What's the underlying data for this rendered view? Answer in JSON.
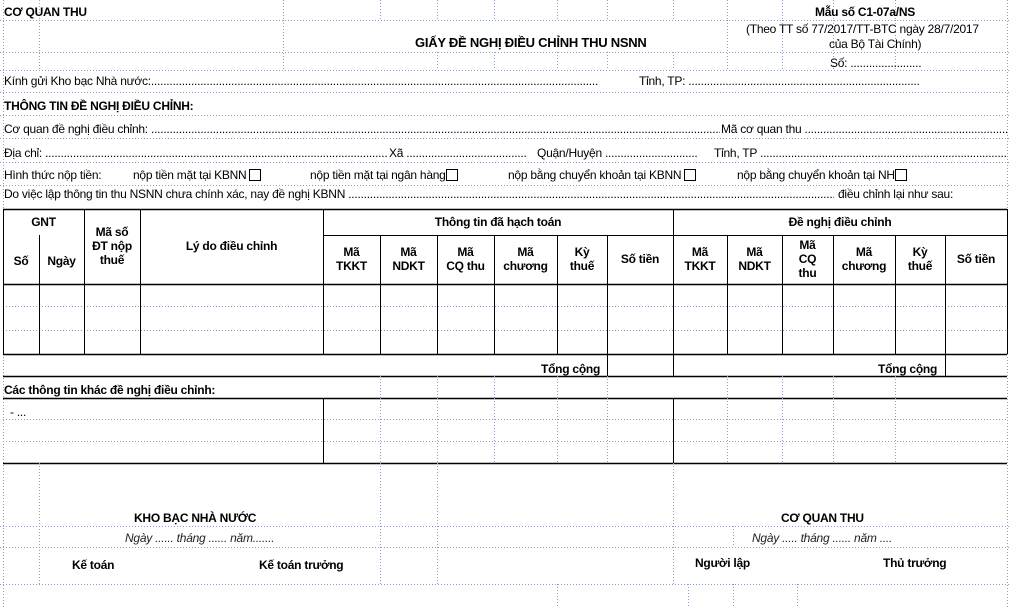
{
  "header": {
    "agency": "CƠ QUAN THU",
    "form_no": "Mẫu số C1-07a/NS",
    "regulation_line1": "(Theo TT số  77/2017/TT-BTC ngày 28/7/2017",
    "regulation_line2": "của Bộ Tài Chính)",
    "number": "Số: .......................",
    "title": "GIẤY ĐỀ NGHỊ ĐIỀU CHỈNH THU NSNN"
  },
  "fields": {
    "send_to": "Kính gửi Kho bạc Nhà nước:.................................................................................................................................................",
    "province": "Tỉnh, TP: ...........................................................................",
    "section_title": "THÔNG TIN ĐỀ NGHỊ ĐIỀU CHỈNH:",
    "requesting_agency": "Cơ quan đề nghị điều chỉnh: ............................................................................................................................................................................................................",
    "agency_code": "Mã cơ quan thu ......................................................................",
    "address": "Địa chỉ: ........................................................................................................................",
    "commune": "Xã .......................................",
    "district": "Quận/Huyện ..............................",
    "province2": "Tỉnh, TP ..................................................................................",
    "payment_method": "Hình thức nộp tiền:",
    "pay_options": [
      "nộp tiền mặt tại KBNN",
      "nộp tiền mặt tại ngân hàng",
      "nộp bằng chuyển khoản tại KBNN",
      "nộp bằng chuyển khoản tại NH"
    ],
    "reason_line": "Do việc lập thông tin thu NSNN chưa chính xác, nay đề nghị KBNN ...............................................................................................................................................................",
    "reason_end": "điều chỉnh lại như sau:"
  },
  "table": {
    "gnt": "GNT",
    "so": "Số",
    "ngay": "Ngày",
    "mst": [
      "Mã số",
      "ĐT nộp",
      "thuế"
    ],
    "ly_do": "Lý do điều chỉnh",
    "group_accounted": "Thông tin đã hạch toán",
    "group_proposed": "Đề nghị điều chỉnh",
    "accounted_cols": [
      [
        "Mã",
        "TKKT"
      ],
      [
        "Mã",
        "NDKT"
      ],
      [
        "Mã",
        "CQ thu"
      ],
      [
        "Mã",
        "chương"
      ],
      [
        "Kỳ",
        "thuế"
      ],
      [
        "Số tiền"
      ]
    ],
    "proposed_cols": [
      [
        "Mã",
        "TKKT"
      ],
      [
        "Mã",
        "NDKT"
      ],
      [
        "Mã",
        "CQ",
        "thu"
      ],
      [
        "Mã",
        "chương"
      ],
      [
        "Kỳ",
        "thuế"
      ],
      [
        "Số tiền"
      ]
    ],
    "total": "Tổng cộng"
  },
  "other_info": {
    "title": "Các thông tin khác đề nghị điều chỉnh:",
    "first_line": "- ..."
  },
  "signatures": {
    "treasury": "KHO BẠC NHÀ NƯỚC",
    "treasury_date": "Ngày ...... tháng ...... năm.......",
    "accountant": "Kế toán",
    "chief_accountant": "Kế toán trưởng",
    "agency": "CƠ QUAN THU",
    "agency_date": "Ngày ..... tháng ...... năm ....",
    "preparer": "Người lập",
    "head": "Thủ trưởng"
  }
}
